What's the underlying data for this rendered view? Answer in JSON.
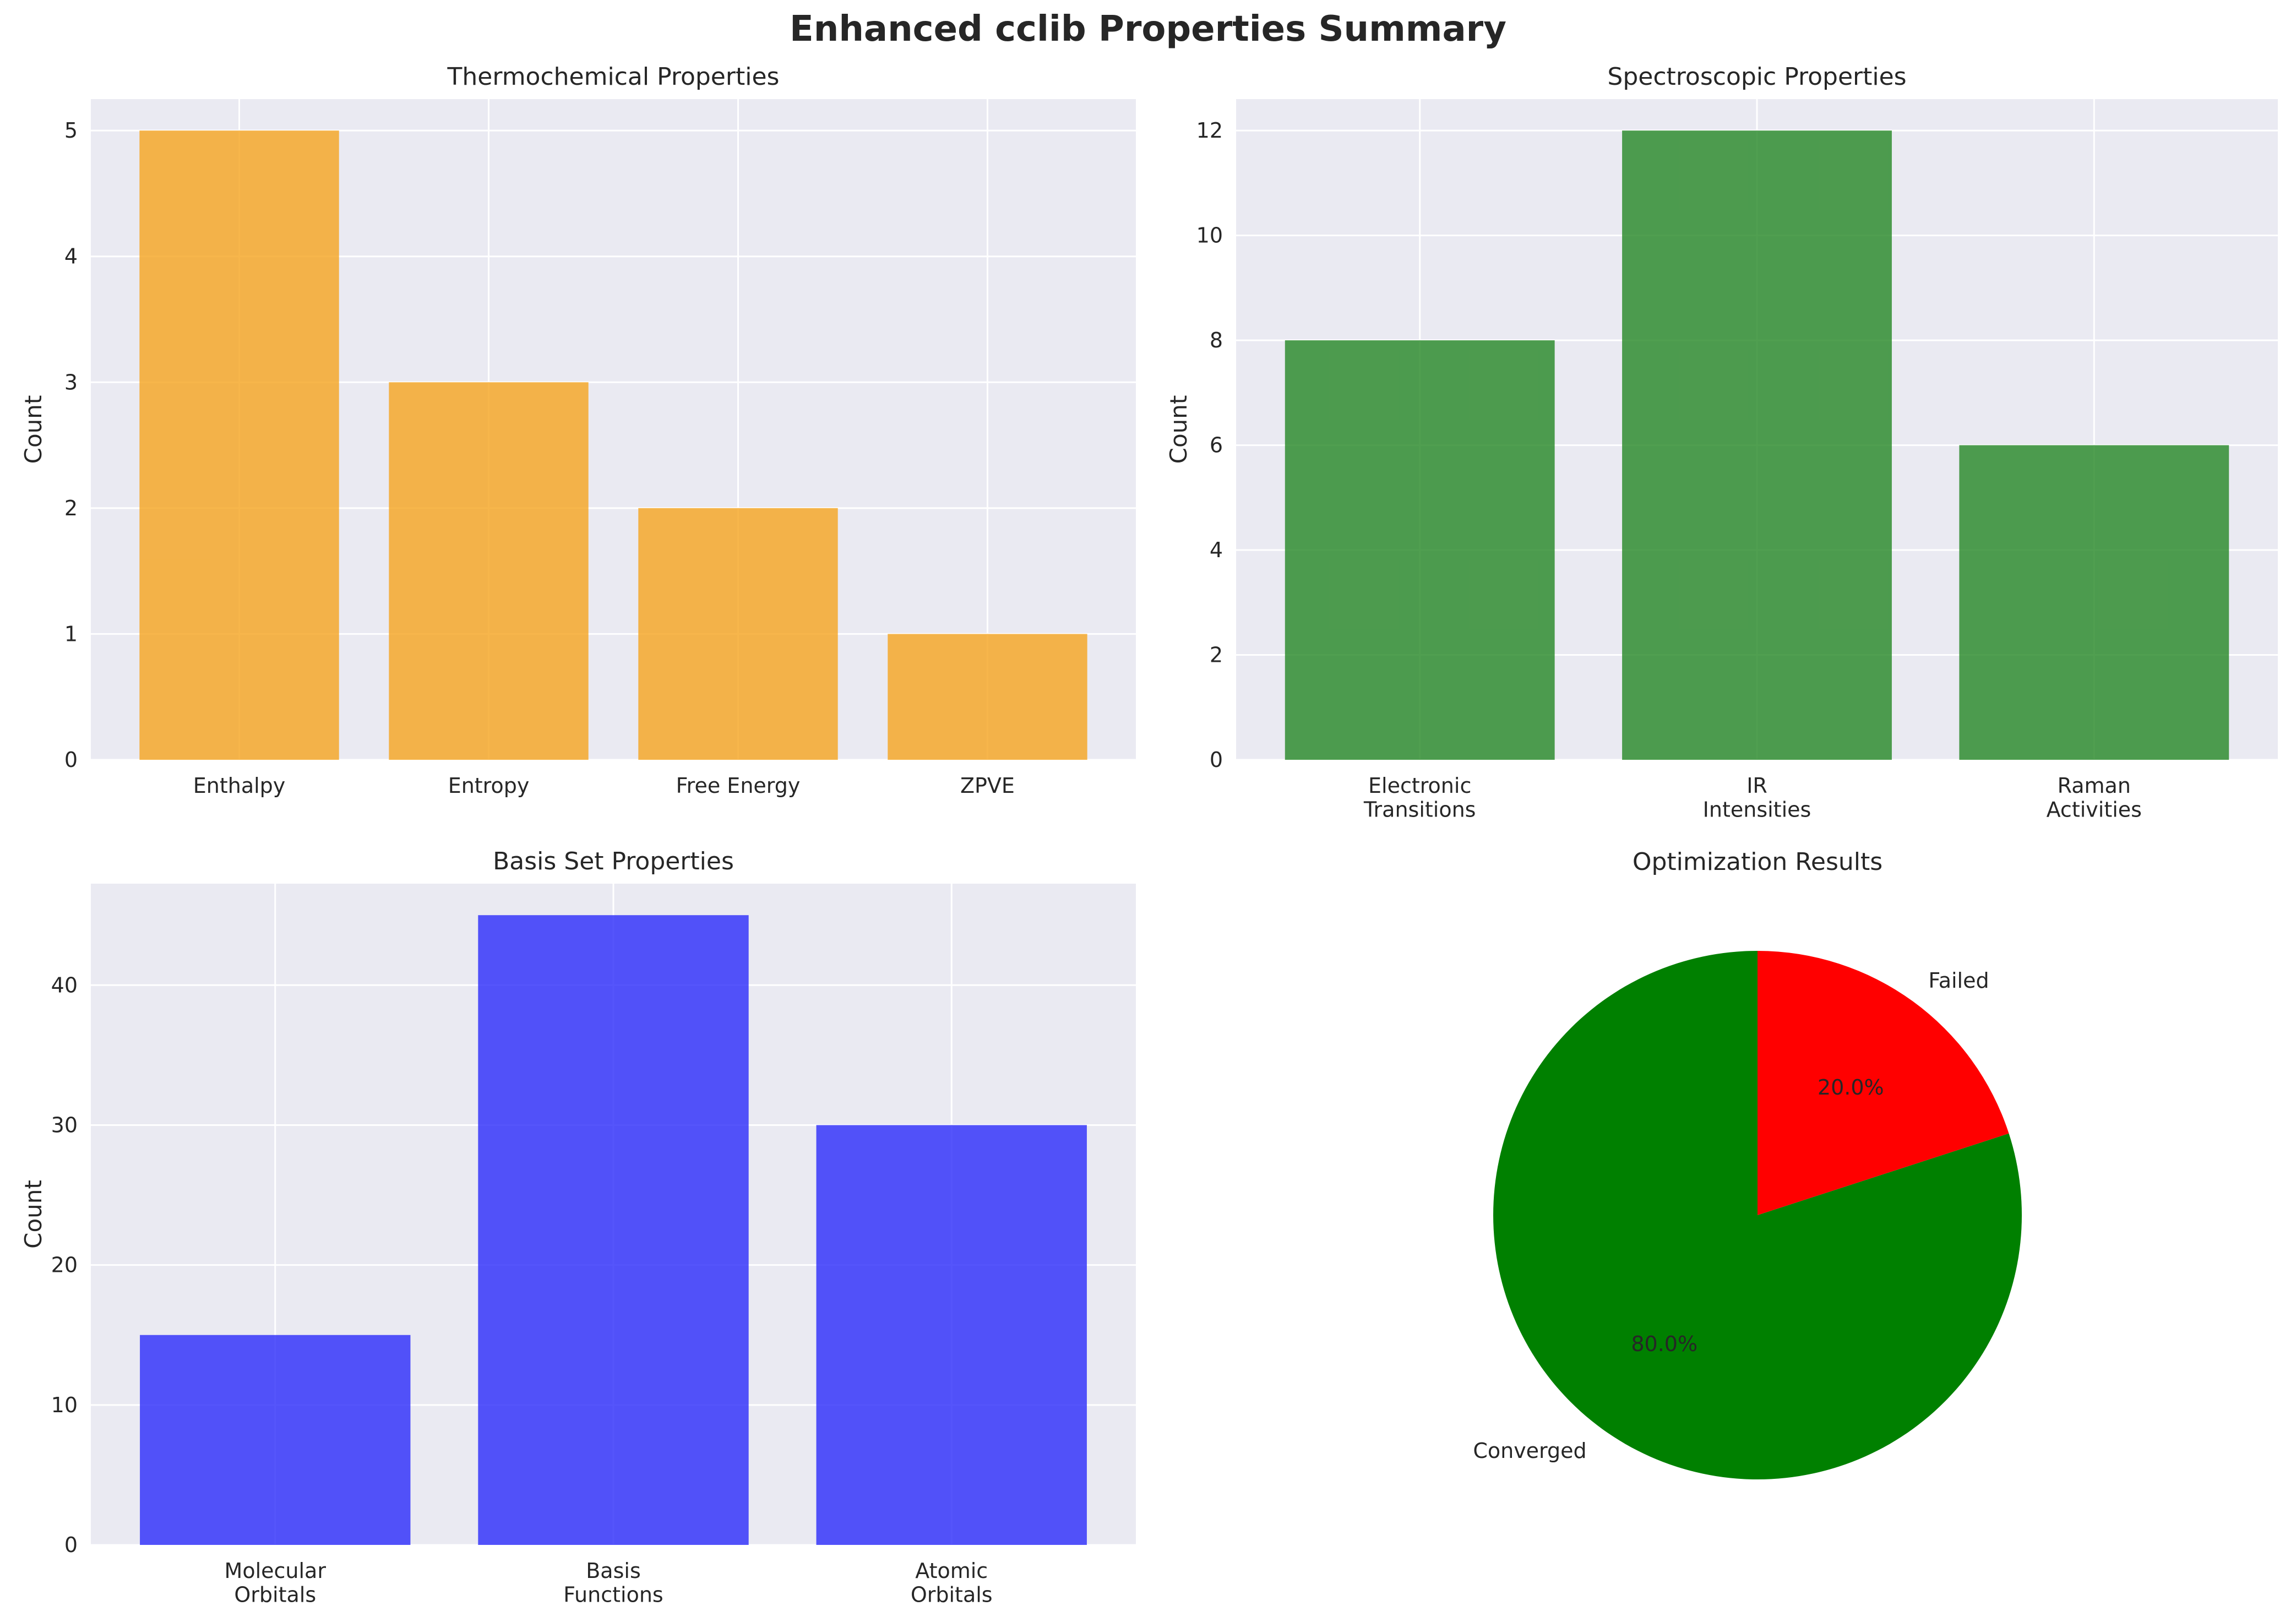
{
  "figure": {
    "title": "Enhanced cclib Properties Summary"
  },
  "chart_data": [
    {
      "type": "bar",
      "title": "Thermochemical Properties",
      "xlabel": "",
      "ylabel": "Count",
      "categories": [
        "Enthalpy",
        "Entropy",
        "Free Energy",
        "ZPVE"
      ],
      "values": [
        5,
        3,
        2,
        1
      ],
      "ylim": [
        0,
        5.25
      ],
      "yticks": [
        0,
        1,
        2,
        3,
        4,
        5
      ],
      "color": "#f5a623",
      "grid": true
    },
    {
      "type": "bar",
      "title": "Spectroscopic Properties",
      "xlabel": "",
      "ylabel": "Count",
      "categories": [
        "Electronic\nTransitions",
        "IR\nIntensities",
        "Raman\nActivities"
      ],
      "values": [
        8,
        12,
        6
      ],
      "ylim": [
        0,
        12.6
      ],
      "yticks": [
        0,
        2,
        4,
        6,
        8,
        10,
        12
      ],
      "color": "#2a8a2a",
      "grid": true
    },
    {
      "type": "bar",
      "title": "Basis Set Properties",
      "xlabel": "",
      "ylabel": "Count",
      "categories": [
        "Molecular\nOrbitals",
        "Basis\nFunctions",
        "Atomic\nOrbitals"
      ],
      "values": [
        15,
        45,
        30
      ],
      "ylim": [
        0,
        47.25
      ],
      "yticks": [
        0,
        10,
        20,
        30,
        40
      ],
      "color": "#2f2ffa",
      "grid": true
    },
    {
      "type": "pie",
      "title": "Optimization Results",
      "labels": [
        "Converged",
        "Failed"
      ],
      "values": [
        80,
        20
      ],
      "percent_labels": [
        "80.0%",
        "20.0%"
      ],
      "colors": [
        "#008000",
        "#ff0000"
      ]
    }
  ]
}
